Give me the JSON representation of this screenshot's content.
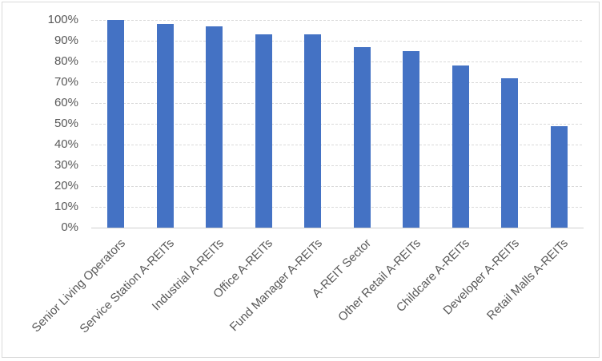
{
  "chart_data": {
    "type": "bar",
    "title": "",
    "xlabel": "",
    "ylabel": "",
    "categories": [
      "Senior Living Operators",
      "Service Station A-REITs",
      "Industrial A-REITs",
      "Office A-REITs",
      "Fund Manager A-REITs",
      "A-REIT Sector",
      "Other Retail A-REITs",
      "Childcare A-REITs",
      "Developer A-REITs",
      "Retail Malls A-REITs"
    ],
    "values": [
      100,
      98,
      97,
      93,
      93,
      87,
      85,
      78,
      72,
      49
    ],
    "value_unit": "%",
    "ylim": [
      0,
      100
    ],
    "ytick_step": 10,
    "ytick_labels": [
      "0%",
      "10%",
      "20%",
      "30%",
      "40%",
      "50%",
      "60%",
      "70%",
      "80%",
      "90%",
      "100%"
    ],
    "grid": true,
    "legend": false,
    "colors": {
      "bar": "#4472c4",
      "gridline": "#d9d9d9",
      "axis_line": "#cfcfcf",
      "tick_label": "#595959",
      "background": "#ffffff",
      "frame_border": "#d9d9d9"
    }
  }
}
